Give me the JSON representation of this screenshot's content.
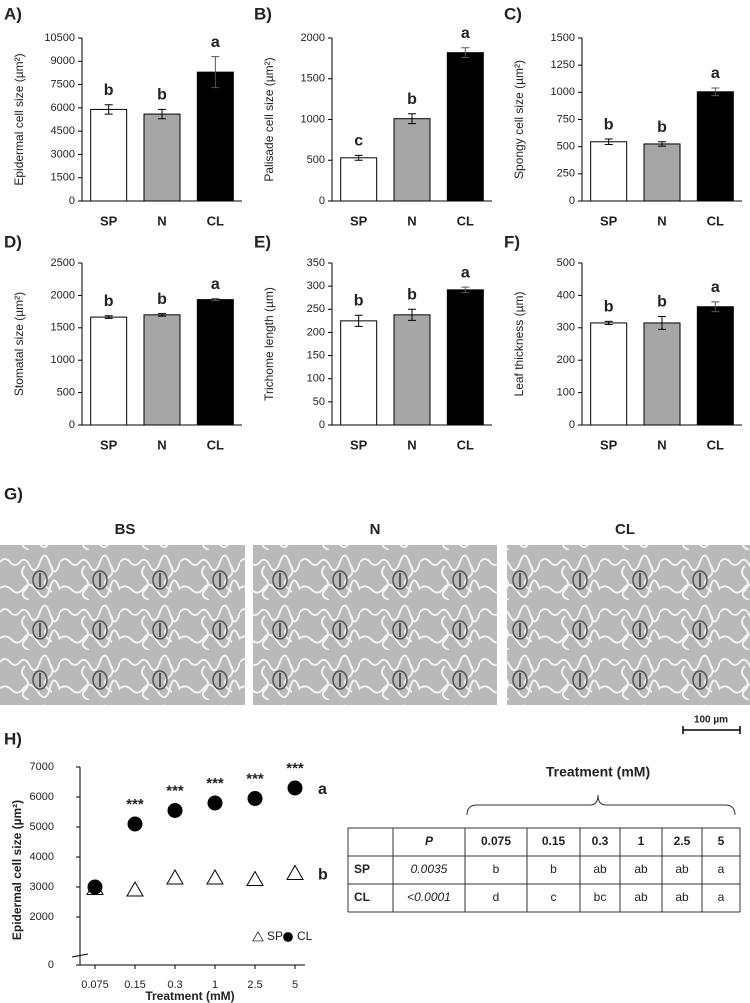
{
  "chart_data": [
    {
      "type": "bar",
      "panel": "A)",
      "y_label": "Epidermal cell size (µm²)",
      "categories": [
        "SP",
        "N",
        "CL"
      ],
      "values": [
        5900,
        5600,
        8300
      ],
      "errors": [
        300,
        300,
        1000
      ],
      "letters": [
        "b",
        "b",
        "a"
      ],
      "colors": [
        "#ffffff",
        "#a6a6a6",
        "#000000"
      ],
      "ylim": [
        0,
        10500
      ],
      "yticks": [
        0,
        1500,
        3000,
        4500,
        6000,
        7500,
        9000,
        10500
      ]
    },
    {
      "type": "bar",
      "panel": "B)",
      "y_label": "Palisade cell size (µm²)",
      "categories": [
        "SP",
        "N",
        "CL"
      ],
      "values": [
        530,
        1010,
        1820
      ],
      "errors": [
        30,
        60,
        60
      ],
      "letters": [
        "c",
        "b",
        "a"
      ],
      "colors": [
        "#ffffff",
        "#a6a6a6",
        "#000000"
      ],
      "ylim": [
        0,
        2000
      ],
      "yticks": [
        0,
        500,
        1000,
        1500,
        2000
      ]
    },
    {
      "type": "bar",
      "panel": "C)",
      "y_label": "Spongy cell size (µm²)",
      "categories": [
        "SP",
        "N",
        "CL"
      ],
      "values": [
        545,
        525,
        1005
      ],
      "errors": [
        25,
        20,
        35
      ],
      "letters": [
        "b",
        "b",
        "a"
      ],
      "colors": [
        "#ffffff",
        "#a6a6a6",
        "#000000"
      ],
      "ylim": [
        0,
        1500
      ],
      "yticks": [
        0,
        250,
        500,
        750,
        1000,
        1250,
        1500
      ]
    },
    {
      "type": "bar",
      "panel": "D)",
      "y_label": "Stomatal size (µm²)",
      "categories": [
        "SP",
        "N",
        "CL"
      ],
      "values": [
        1665,
        1700,
        1935
      ],
      "errors": [
        20,
        20,
        15
      ],
      "letters": [
        "b",
        "b",
        "a"
      ],
      "colors": [
        "#ffffff",
        "#a6a6a6",
        "#000000"
      ],
      "ylim": [
        0,
        2500
      ],
      "yticks": [
        0,
        500,
        1000,
        1500,
        2000,
        2500
      ]
    },
    {
      "type": "bar",
      "panel": "E)",
      "y_label": "Trichome length (µm)",
      "categories": [
        "SP",
        "N",
        "CL"
      ],
      "values": [
        225,
        238,
        292
      ],
      "errors": [
        12,
        12,
        6
      ],
      "letters": [
        "b",
        "b",
        "a"
      ],
      "colors": [
        "#ffffff",
        "#a6a6a6",
        "#000000"
      ],
      "ylim": [
        0,
        350
      ],
      "yticks": [
        0,
        50,
        100,
        150,
        200,
        250,
        300,
        350
      ]
    },
    {
      "type": "bar",
      "panel": "F)",
      "y_label": "Leaf thickness (µm)",
      "categories": [
        "SP",
        "N",
        "CL"
      ],
      "values": [
        315,
        315,
        365
      ],
      "errors": [
        5,
        20,
        15
      ],
      "letters": [
        "b",
        "b",
        "a"
      ],
      "colors": [
        "#ffffff",
        "#a6a6a6",
        "#000000"
      ],
      "ylim": [
        0,
        500
      ],
      "yticks": [
        0,
        100,
        200,
        300,
        400,
        500
      ]
    },
    {
      "type": "scatter",
      "panel": "H)",
      "y_label": "Epidermal cell size (µm²)",
      "x_label": "Treatment (mM)",
      "categories": [
        "0.075",
        "0.15",
        "0.3",
        "1",
        "2.5",
        "5"
      ],
      "ylim": [
        0,
        7000
      ],
      "yticks": [
        0,
        2000,
        3000,
        4000,
        5000,
        6000,
        7000
      ],
      "ybreak": [
        300,
        700
      ],
      "series": [
        {
          "name": "SP",
          "marker": "triangle",
          "color": "#ffffff",
          "values": [
            2950,
            2900,
            3300,
            3300,
            3250,
            3450
          ],
          "letter": "b"
        },
        {
          "name": "CL",
          "marker": "circle",
          "color": "#000000",
          "values": [
            3000,
            5100,
            5550,
            5800,
            5950,
            6300
          ],
          "letter": "a",
          "significance": [
            null,
            "***",
            "***",
            "***",
            "***",
            "***"
          ]
        }
      ]
    }
  ],
  "micrographs": {
    "panel": "G)",
    "labels": [
      "BS",
      "N",
      "CL"
    ],
    "scale_bar": "100 µm"
  },
  "table": {
    "title": "Treatment (mM)",
    "columns": [
      "P",
      "0.075",
      "0.15",
      "0.3",
      "1",
      "2.5",
      "5"
    ],
    "rows": [
      {
        "label": "SP",
        "cells": [
          "0.0035",
          "b",
          "b",
          "ab",
          "ab",
          "ab",
          "a"
        ]
      },
      {
        "label": "CL",
        "cells": [
          "<0.0001",
          "d",
          "c",
          "bc",
          "ab",
          "ab",
          "a"
        ]
      }
    ]
  }
}
